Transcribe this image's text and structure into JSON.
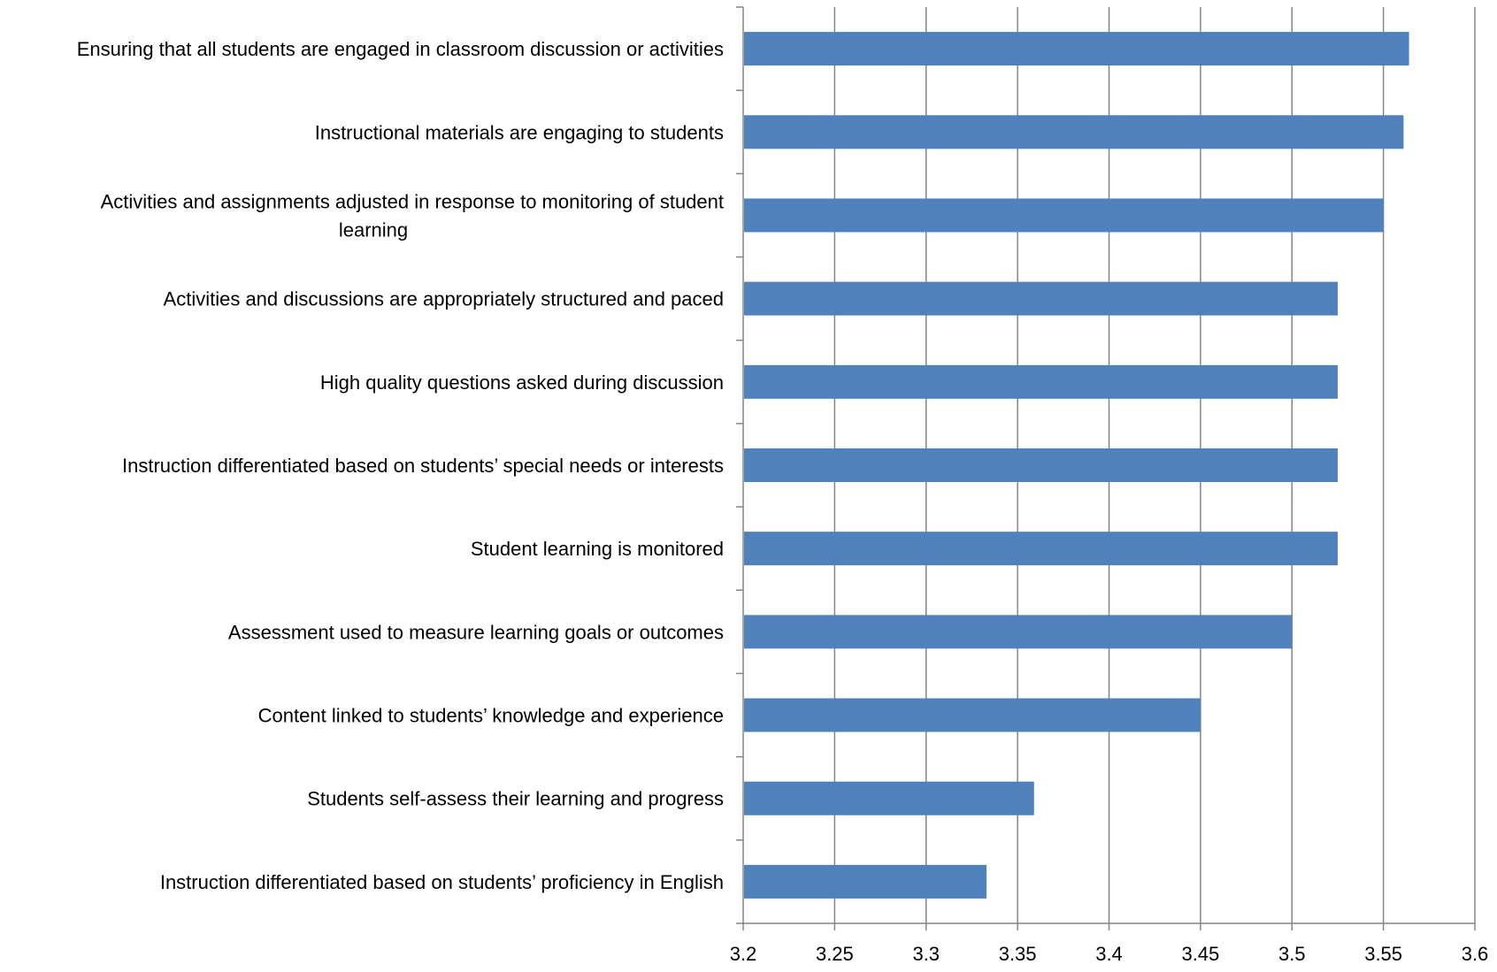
{
  "chart_data": {
    "type": "bar",
    "orientation": "horizontal",
    "title": "",
    "xlabel": "",
    "ylabel": "",
    "categories": [
      [
        "Ensuring that all students are engaged in classroom discussion or activities"
      ],
      [
        "Instructional materials are engaging to students"
      ],
      [
        "Activities and assignments adjusted in response to monitoring of student",
        "learning"
      ],
      [
        "Activities and discussions are appropriately structured and paced"
      ],
      [
        "High quality questions asked during discussion"
      ],
      [
        "Instruction differentiated based on students’ special needs or interests"
      ],
      [
        "Student learning is monitored"
      ],
      [
        "Assessment used to measure learning goals or outcomes"
      ],
      [
        "Content linked to students’ knowledge and experience"
      ],
      [
        "Students self-assess their learning and progress"
      ],
      [
        "Instruction differentiated based on students’ proficiency in English"
      ]
    ],
    "values": [
      3.564,
      3.561,
      3.55,
      3.525,
      3.525,
      3.525,
      3.525,
      3.5,
      3.45,
      3.359,
      3.333
    ],
    "xlim": [
      3.2,
      3.6
    ],
    "xticks": [
      "3.2",
      "3.25",
      "3.3",
      "3.35",
      "3.4",
      "3.45",
      "3.5",
      "3.55",
      "3.6"
    ],
    "grid": true,
    "legend": "none",
    "colors": {
      "bar": "#4F81BD",
      "grid": "#868686",
      "axis": "#868686"
    }
  }
}
